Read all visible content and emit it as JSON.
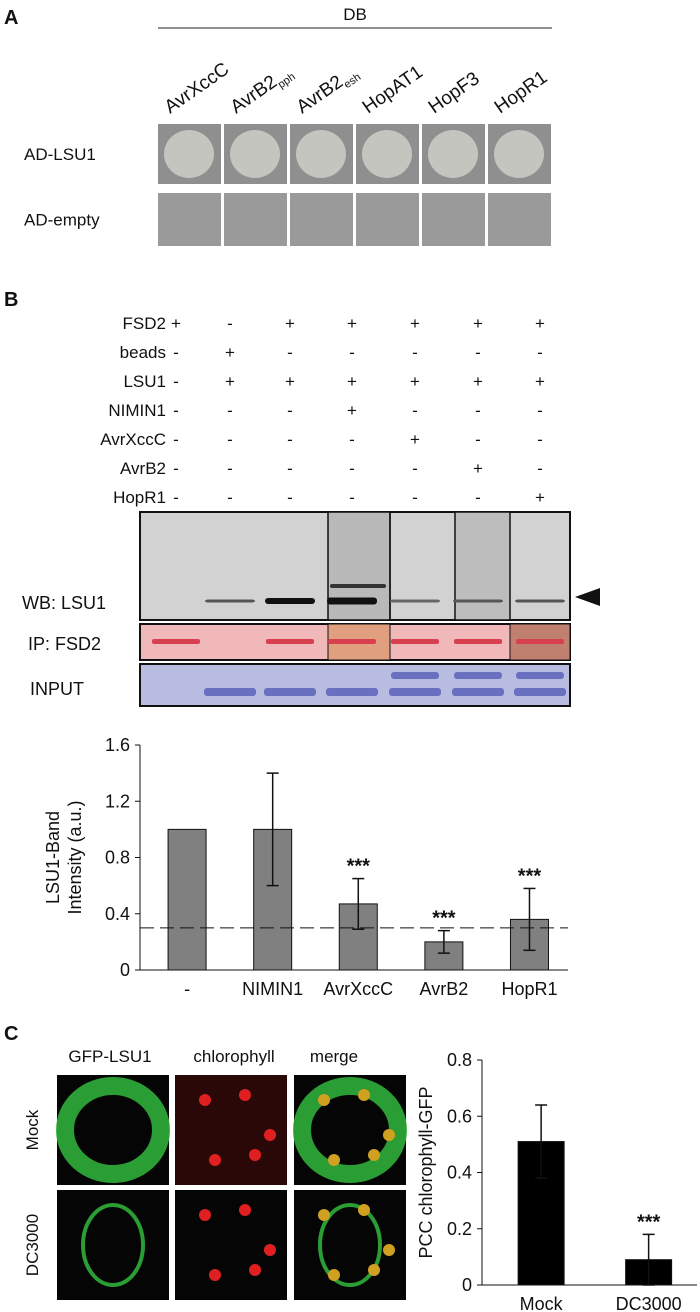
{
  "panel_a": {
    "label": "A",
    "header": "DB",
    "columns": [
      {
        "text": "AvrXccC"
      },
      {
        "text": "AvrB2",
        "sub": "pph"
      },
      {
        "text": "AvrB2",
        "sub": "esh"
      },
      {
        "text": "HopAT1"
      },
      {
        "text": "HopF3"
      },
      {
        "text": "HopR1"
      }
    ],
    "rows": [
      "AD-LSU1",
      "AD-empty"
    ]
  },
  "panel_b": {
    "label": "B",
    "conditions": [
      {
        "name": "FSD2",
        "signs": [
          "+",
          "-",
          "+",
          "+",
          "+",
          "+",
          "+"
        ]
      },
      {
        "name": "beads",
        "signs": [
          "-",
          "+",
          "-",
          "-",
          "-",
          "-",
          "-"
        ]
      },
      {
        "name": "LSU1",
        "signs": [
          "-",
          "+",
          "+",
          "+",
          "+",
          "+",
          "+"
        ]
      },
      {
        "name": "NIMIN1",
        "signs": [
          "-",
          "-",
          "-",
          "+",
          "-",
          "-",
          "-"
        ]
      },
      {
        "name": "AvrXccC",
        "signs": [
          "-",
          "-",
          "-",
          "-",
          "+",
          "-",
          "-"
        ]
      },
      {
        "name": "AvrB2",
        "signs": [
          "-",
          "-",
          "-",
          "-",
          "-",
          "+",
          "-"
        ]
      },
      {
        "name": "HopR1",
        "signs": [
          "-",
          "-",
          "-",
          "-",
          "-",
          "-",
          "+"
        ]
      }
    ],
    "blot_labels": [
      "WB: LSU1",
      "IP: FSD2",
      "INPUT"
    ]
  },
  "panel_c": {
    "label": "C",
    "columns": [
      "GFP-LSU1",
      "chlorophyll",
      "merge"
    ],
    "rows": [
      "Mock",
      "DC3000"
    ]
  },
  "chart_data": [
    {
      "type": "bar",
      "ylabel": [
        "LSU1-Band",
        "Intensity (a.u.)"
      ],
      "categories": [
        "-",
        "NIMIN1",
        "AvrXccC",
        "AvrB2",
        "HopR1"
      ],
      "values": [
        1.0,
        1.0,
        0.47,
        0.2,
        0.36
      ],
      "errors": [
        null,
        0.4,
        0.18,
        0.08,
        0.22
      ],
      "annotations": [
        null,
        null,
        "***",
        "***",
        "***"
      ],
      "reference_line": 0.3,
      "color": "#808080",
      "ylim": [
        0,
        1.6
      ],
      "yticks": [
        0,
        0.4,
        0.8,
        1.2,
        1.6
      ]
    },
    {
      "type": "bar",
      "ylabel": [
        "PCC chlorophyll-GFP"
      ],
      "categories": [
        "Mock",
        "DC3000"
      ],
      "values": [
        0.51,
        0.09
      ],
      "errors": [
        0.13,
        0.09
      ],
      "annotations": [
        null,
        "***"
      ],
      "color": "#000000",
      "ylim": [
        0,
        0.8
      ],
      "yticks": [
        0,
        0.2,
        0.4,
        0.6,
        0.8
      ]
    }
  ]
}
